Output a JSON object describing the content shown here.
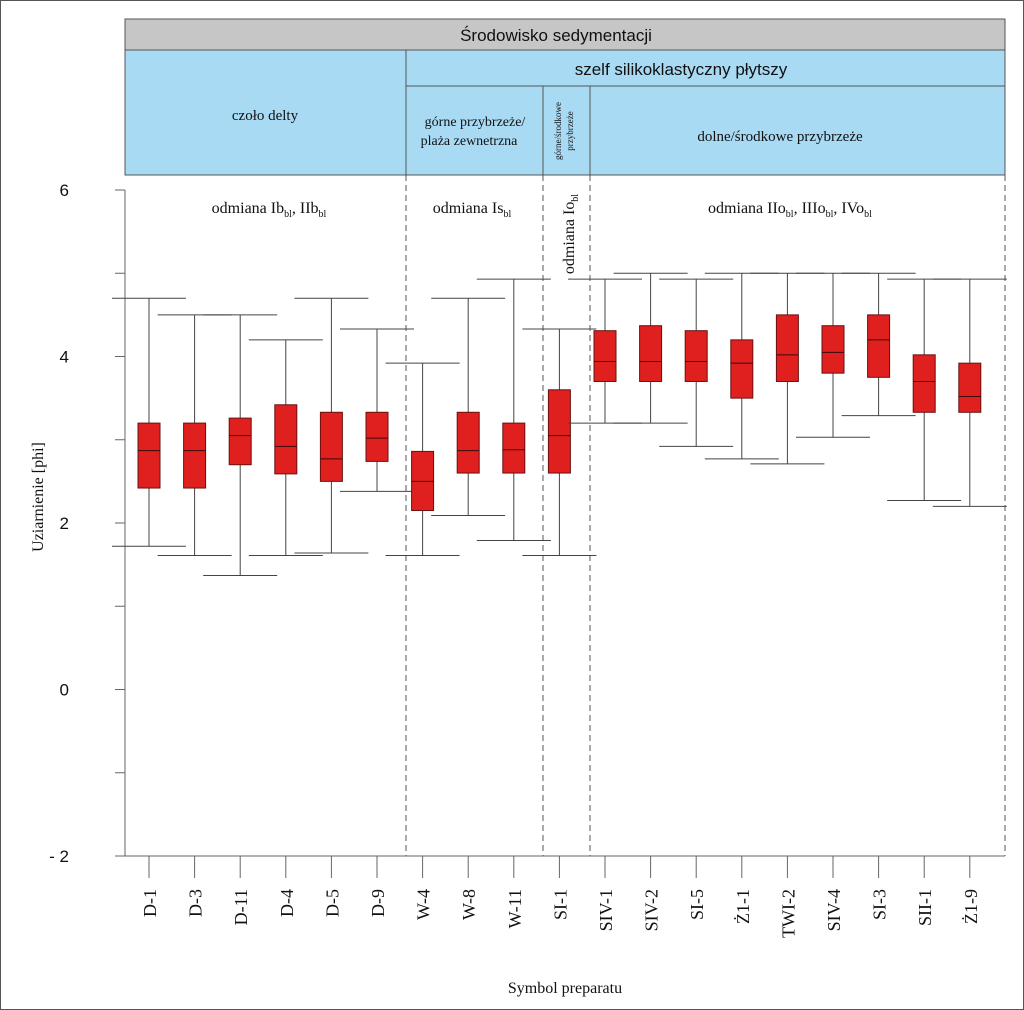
{
  "chart_data": {
    "type": "boxplot",
    "title": "Środowisko sedymentacji",
    "xlabel": "Symbol preparatu",
    "ylabel": "Uziarnienie [phi]",
    "ylim": [
      -2,
      6
    ],
    "yticks": [
      -2,
      0,
      2,
      4,
      6
    ],
    "ytick_labels": [
      "- 2",
      "0",
      "2",
      "4",
      "6"
    ],
    "box_color": "#e0201f",
    "header": {
      "top": "Środowisko sedymentacji",
      "shelf": "szelf silikoklastyczny płytszy",
      "delta_front": "czoło delty",
      "upper_shoreface": [
        "górne przybrzeże/",
        "plaża zewnetrzna"
      ],
      "upper_middle_shoreface": [
        "górne/środkowe",
        "przybrzeże"
      ],
      "lower_middle_shoreface": "dolne/środkowe przybrzeże"
    },
    "varieties": [
      {
        "name": "delta",
        "parts": [
          {
            "t": "odmiana Ib",
            "sub": false
          },
          {
            "t": "bl",
            "sub": true
          },
          {
            "t": ", IIb",
            "sub": false
          },
          {
            "t": "bl",
            "sub": true
          }
        ]
      },
      {
        "name": "upper",
        "parts": [
          {
            "t": "odmiana Is",
            "sub": false
          },
          {
            "t": "bl",
            "sub": true
          }
        ]
      },
      {
        "name": "middle",
        "parts": [
          {
            "t": "odmiana Io",
            "sub": false
          },
          {
            "t": "bl",
            "sub": true
          }
        ]
      },
      {
        "name": "lower",
        "parts": [
          {
            "t": "odmiana IIo",
            "sub": false
          },
          {
            "t": "bl",
            "sub": true
          },
          {
            "t": ", IIIo",
            "sub": false
          },
          {
            "t": "bl",
            "sub": true
          },
          {
            "t": ", IVo",
            "sub": false
          },
          {
            "t": "bl",
            "sub": true
          }
        ]
      }
    ],
    "categories": [
      "D-1",
      "D-3",
      "D-11",
      "D-4",
      "D-5",
      "D-9",
      "W-4",
      "W-8",
      "W-11",
      "SI-1",
      "SIV-1",
      "SIV-2",
      "SI-5",
      "Ż1-1",
      "TWI-2",
      "SIV-4",
      "SI-3",
      "SII-1",
      "Ż1-9"
    ],
    "boxes": [
      {
        "min": 1.72,
        "q1": 2.42,
        "median": 2.87,
        "q3": 3.2,
        "max": 4.7
      },
      {
        "min": 1.61,
        "q1": 2.42,
        "median": 2.87,
        "q3": 3.2,
        "max": 4.5
      },
      {
        "min": 1.37,
        "q1": 2.7,
        "median": 3.05,
        "q3": 3.26,
        "max": 4.5
      },
      {
        "min": 1.61,
        "q1": 2.59,
        "median": 2.92,
        "q3": 3.42,
        "max": 4.2
      },
      {
        "min": 1.64,
        "q1": 2.5,
        "median": 2.77,
        "q3": 3.33,
        "max": 4.7
      },
      {
        "min": 2.38,
        "q1": 2.74,
        "median": 3.02,
        "q3": 3.33,
        "max": 4.33
      },
      {
        "min": 1.61,
        "q1": 2.15,
        "median": 2.5,
        "q3": 2.86,
        "max": 3.92
      },
      {
        "min": 2.09,
        "q1": 2.6,
        "median": 2.87,
        "q3": 3.33,
        "max": 4.7
      },
      {
        "min": 1.79,
        "q1": 2.6,
        "median": 2.88,
        "q3": 3.2,
        "max": 4.93
      },
      {
        "min": 1.61,
        "q1": 2.6,
        "median": 3.05,
        "q3": 3.6,
        "max": 4.33
      },
      {
        "min": 3.2,
        "q1": 3.7,
        "median": 3.94,
        "q3": 4.31,
        "max": 4.93
      },
      {
        "min": 3.2,
        "q1": 3.7,
        "median": 3.94,
        "q3": 4.37,
        "max": 5.0
      },
      {
        "min": 2.92,
        "q1": 3.7,
        "median": 3.94,
        "q3": 4.31,
        "max": 4.93
      },
      {
        "min": 2.77,
        "q1": 3.5,
        "median": 3.92,
        "q3": 4.2,
        "max": 5.0
      },
      {
        "min": 2.71,
        "q1": 3.7,
        "median": 4.02,
        "q3": 4.5,
        "max": 5.0
      },
      {
        "min": 3.03,
        "q1": 3.8,
        "median": 4.05,
        "q3": 4.37,
        "max": 5.0
      },
      {
        "min": 3.29,
        "q1": 3.75,
        "median": 4.2,
        "q3": 4.5,
        "max": 5.0
      },
      {
        "min": 2.27,
        "q1": 3.33,
        "median": 3.7,
        "q3": 4.02,
        "max": 4.93
      },
      {
        "min": 2.2,
        "q1": 3.33,
        "median": 3.52,
        "q3": 3.92,
        "max": 4.93
      }
    ]
  }
}
